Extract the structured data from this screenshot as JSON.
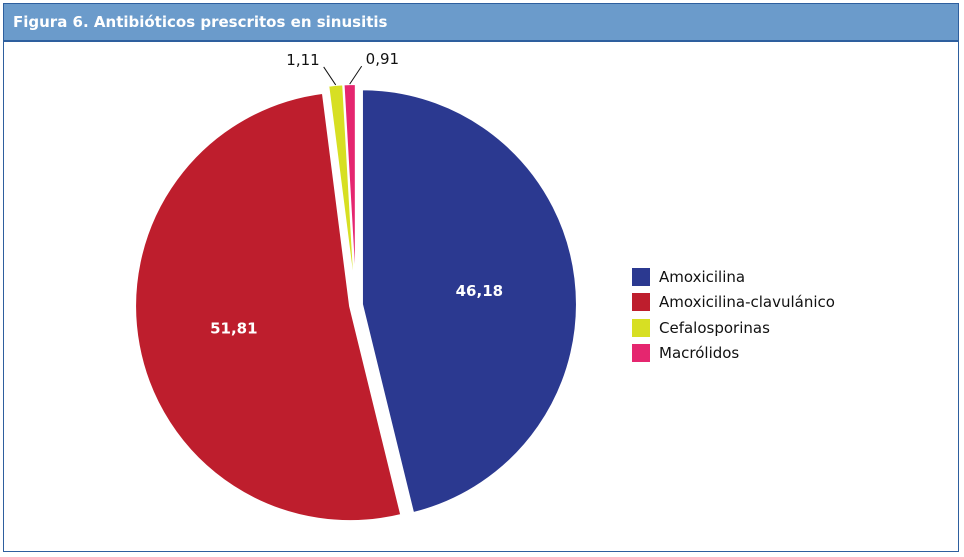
{
  "title": "Figura 6.  Antibióticos prescritos en sinusitis",
  "chart_data": {
    "type": "pie",
    "title": "Figura 6.  Antibióticos prescritos en sinusitis",
    "categories": [
      "Amoxicilina",
      "Amoxicilina-clavulánico",
      "Cefalosporinas",
      "Macrólidos"
    ],
    "values": [
      46.18,
      51.81,
      1.11,
      0.91
    ],
    "labels": [
      "46,18",
      "51,81",
      "1,11",
      "0,91"
    ],
    "colors": [
      "#2b3990",
      "#be1e2d",
      "#d7df23",
      "#e5266f"
    ],
    "legend": "right"
  }
}
